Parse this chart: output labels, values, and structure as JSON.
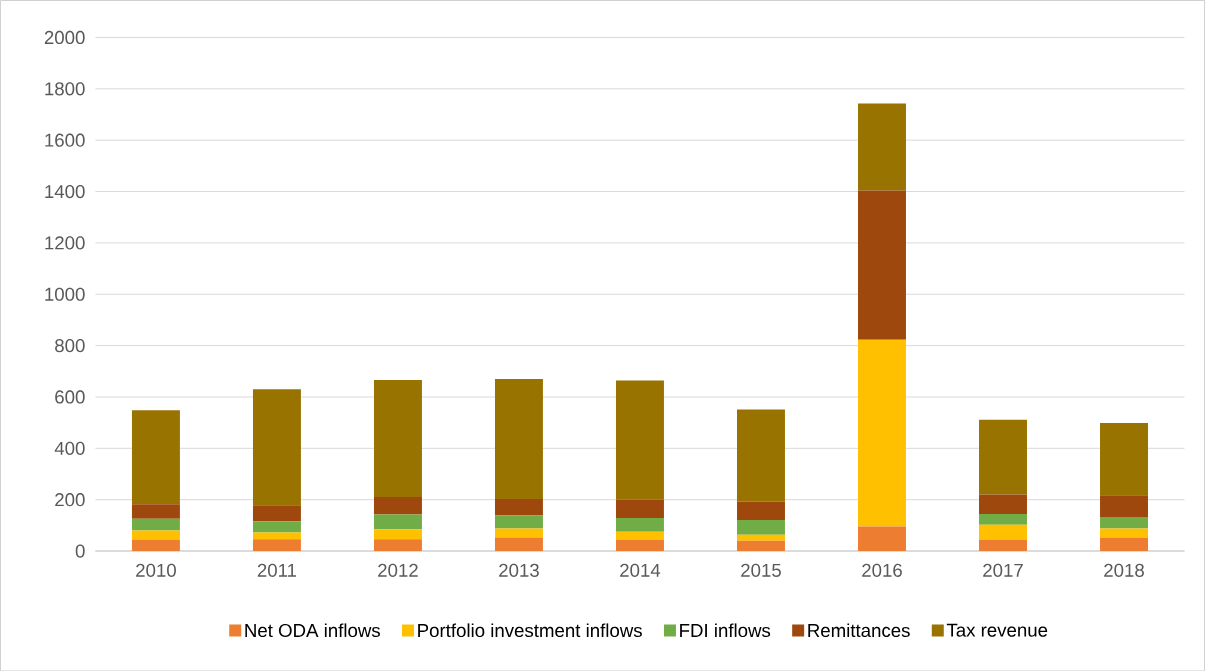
{
  "chart_data": {
    "type": "bar",
    "stacked": true,
    "categories": [
      "2010",
      "2011",
      "2012",
      "2013",
      "2014",
      "2015",
      "2016",
      "2017",
      "2018"
    ],
    "series": [
      {
        "name": "Net ODA inflows",
        "color": "#ed7d31",
        "values": [
          43,
          46,
          46,
          53,
          43,
          40,
          96,
          43,
          51
        ]
      },
      {
        "name": "Portfolio investment inflows",
        "color": "#ffc000",
        "values": [
          37,
          26,
          39,
          35,
          32,
          23,
          727,
          59,
          37
        ]
      },
      {
        "name": "FDI inflows",
        "color": "#70ad47",
        "values": [
          46,
          44,
          57,
          50,
          54,
          58,
          0,
          42,
          45
        ]
      },
      {
        "name": "Remittances",
        "color": "#9e480e",
        "values": [
          56,
          62,
          68,
          65,
          72,
          72,
          581,
          76,
          84
        ]
      },
      {
        "name": "Tax revenue",
        "color": "#997300",
        "values": [
          366,
          452,
          456,
          467,
          463,
          358,
          339,
          291,
          282
        ]
      }
    ],
    "ylim": [
      0,
      2000
    ],
    "yticks": [
      0,
      200,
      400,
      600,
      800,
      1000,
      1200,
      1400,
      1600,
      1800,
      2000
    ],
    "grid": "y",
    "legend": "bottom"
  }
}
